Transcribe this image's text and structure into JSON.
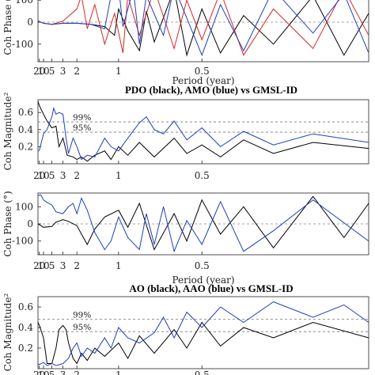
{
  "x_ticks": [
    "20",
    "10",
    "5",
    "3",
    "2",
    "1",
    "0.5"
  ],
  "chart_data": [
    {
      "type": "line",
      "panel": "phase-1",
      "title": "",
      "xlabel": "Period (year)",
      "ylabel": "Coh Phase (°)",
      "xscale": "reciprocal",
      "xlim": [
        30,
        0.25
      ],
      "ylim": [
        -180,
        180
      ],
      "y_ticks": [
        "-100",
        "0",
        "100"
      ],
      "zero_line": true,
      "series": [
        {
          "color": "#000000",
          "points": [
            [
              30,
              5
            ],
            [
              20,
              3
            ],
            [
              10,
              -5
            ],
            [
              5,
              -10
            ],
            [
              3,
              -5
            ],
            [
              2,
              -5
            ],
            [
              1.5,
              -10
            ],
            [
              1.2,
              -20
            ],
            [
              1.05,
              -60
            ],
            [
              1,
              60
            ],
            [
              0.9,
              -40
            ],
            [
              0.8,
              -130
            ],
            [
              0.75,
              50
            ],
            [
              0.7,
              -90
            ],
            [
              0.65,
              20
            ],
            [
              0.6,
              150
            ],
            [
              0.55,
              -150
            ],
            [
              0.5,
              60
            ],
            [
              0.45,
              -140
            ],
            [
              0.4,
              30
            ],
            [
              0.35,
              -100
            ],
            [
              0.3,
              120
            ],
            [
              0.27,
              -150
            ],
            [
              0.25,
              40
            ]
          ]
        },
        {
          "color": "#d62728",
          "points": [
            [
              30,
              5
            ],
            [
              20,
              3
            ],
            [
              10,
              -5
            ],
            [
              5,
              -10
            ],
            [
              3,
              5
            ],
            [
              2,
              60
            ],
            [
              1.8,
              120
            ],
            [
              1.6,
              -30
            ],
            [
              1.4,
              80
            ],
            [
              1.2,
              -100
            ],
            [
              1.05,
              40
            ],
            [
              0.95,
              -140
            ],
            [
              0.9,
              120
            ],
            [
              0.8,
              -60
            ],
            [
              0.7,
              150
            ],
            [
              0.6,
              -120
            ],
            [
              0.55,
              100
            ],
            [
              0.5,
              -80
            ],
            [
              0.45,
              140
            ],
            [
              0.4,
              -150
            ],
            [
              0.35,
              60
            ],
            [
              0.3,
              -120
            ],
            [
              0.27,
              150
            ],
            [
              0.25,
              -60
            ]
          ]
        },
        {
          "color": "#1f3fbf",
          "points": [
            [
              30,
              5
            ],
            [
              20,
              3
            ],
            [
              10,
              -5
            ],
            [
              5,
              -10
            ],
            [
              3,
              -5
            ],
            [
              2,
              -5
            ],
            [
              1.5,
              -10
            ],
            [
              1.2,
              -30
            ],
            [
              1.1,
              120
            ],
            [
              1,
              160
            ],
            [
              0.95,
              -20
            ],
            [
              0.85,
              150
            ],
            [
              0.8,
              -100
            ],
            [
              0.75,
              120
            ],
            [
              0.65,
              -60
            ],
            [
              0.6,
              160
            ],
            [
              0.5,
              -150
            ],
            [
              0.45,
              80
            ],
            [
              0.4,
              -130
            ],
            [
              0.35,
              150
            ],
            [
              0.3,
              -50
            ],
            [
              0.27,
              130
            ],
            [
              0.25,
              -140
            ]
          ]
        }
      ]
    },
    {
      "type": "line",
      "panel": "magnitude-1",
      "title": "PDO (black), AMO (blue) vs GMSL-ID",
      "xlabel": "",
      "ylabel": "Coh Magnitude²",
      "xscale": "reciprocal",
      "xlim": [
        30,
        0.25
      ],
      "ylim": [
        0,
        0.75
      ],
      "y_ticks": [
        "0.2",
        "0.4",
        "0.6"
      ],
      "significance": [
        {
          "label": "99%",
          "value": 0.49
        },
        {
          "label": "95%",
          "value": 0.37
        }
      ],
      "series": [
        {
          "name": "PDO",
          "color": "#000000",
          "points": [
            [
              30,
              0.73
            ],
            [
              20,
              0.68
            ],
            [
              10,
              0.58
            ],
            [
              7,
              0.5
            ],
            [
              5,
              0.42
            ],
            [
              4,
              0.44
            ],
            [
              3.5,
              0.2
            ],
            [
              3,
              0.3
            ],
            [
              2.6,
              0.1
            ],
            [
              2.2,
              0.08
            ],
            [
              2,
              0.05
            ],
            [
              1.8,
              0.08
            ],
            [
              1.6,
              0.03
            ],
            [
              1.4,
              0.1
            ],
            [
              1.2,
              0.15
            ],
            [
              1.1,
              0.05
            ],
            [
              1,
              0.2
            ],
            [
              0.9,
              0.1
            ],
            [
              0.8,
              0.25
            ],
            [
              0.7,
              0.08
            ],
            [
              0.6,
              0.3
            ],
            [
              0.55,
              0.12
            ],
            [
              0.5,
              0.22
            ],
            [
              0.45,
              0.08
            ],
            [
              0.4,
              0.28
            ],
            [
              0.35,
              0.12
            ],
            [
              0.3,
              0.25
            ],
            [
              0.25,
              0.18
            ]
          ]
        },
        {
          "name": "AMO",
          "color": "#1f3fbf",
          "points": [
            [
              30,
              0.15
            ],
            [
              20,
              0.16
            ],
            [
              10,
              0.35
            ],
            [
              7,
              0.4
            ],
            [
              5,
              0.55
            ],
            [
              4.5,
              0.65
            ],
            [
              4,
              0.58
            ],
            [
              3.5,
              0.6
            ],
            [
              3,
              0.58
            ],
            [
              2.7,
              0.3
            ],
            [
              2.5,
              0.12
            ],
            [
              2.2,
              0.3
            ],
            [
              2,
              0.2
            ],
            [
              1.8,
              0.05
            ],
            [
              1.6,
              0.1
            ],
            [
              1.4,
              0.08
            ],
            [
              1.2,
              0.3
            ],
            [
              1.1,
              0.2
            ],
            [
              1,
              0.15
            ],
            [
              0.9,
              0.3
            ],
            [
              0.8,
              0.48
            ],
            [
              0.75,
              0.55
            ],
            [
              0.7,
              0.4
            ],
            [
              0.65,
              0.35
            ],
            [
              0.6,
              0.5
            ],
            [
              0.55,
              0.28
            ],
            [
              0.5,
              0.42
            ],
            [
              0.45,
              0.2
            ],
            [
              0.4,
              0.38
            ],
            [
              0.35,
              0.22
            ],
            [
              0.3,
              0.35
            ],
            [
              0.25,
              0.25
            ]
          ]
        }
      ]
    },
    {
      "type": "line",
      "panel": "phase-2",
      "title": "",
      "xlabel": "Period (year)",
      "ylabel": "Coh Phase (°)",
      "xscale": "reciprocal",
      "xlim": [
        30,
        0.25
      ],
      "ylim": [
        -180,
        180
      ],
      "y_ticks": [
        "-100",
        "0",
        "100"
      ],
      "zero_line": true,
      "series": [
        {
          "color": "#000000",
          "points": [
            [
              30,
              0
            ],
            [
              20,
              -5
            ],
            [
              10,
              -20
            ],
            [
              5,
              -15
            ],
            [
              4,
              10
            ],
            [
              3,
              25
            ],
            [
              2.5,
              15
            ],
            [
              2,
              -10
            ],
            [
              1.8,
              -60
            ],
            [
              1.6,
              -120
            ],
            [
              1.4,
              -30
            ],
            [
              1.2,
              40
            ],
            [
              1,
              80
            ],
            [
              0.9,
              -20
            ],
            [
              0.8,
              120
            ],
            [
              0.7,
              -150
            ],
            [
              0.6,
              60
            ],
            [
              0.55,
              -100
            ],
            [
              0.5,
              140
            ],
            [
              0.45,
              -60
            ],
            [
              0.4,
              100
            ],
            [
              0.35,
              -140
            ],
            [
              0.3,
              160
            ],
            [
              0.27,
              -80
            ],
            [
              0.25,
              120
            ]
          ]
        },
        {
          "color": "#1f3fbf",
          "points": [
            [
              30,
              165
            ],
            [
              20,
              168
            ],
            [
              15,
              170
            ],
            [
              10,
              140
            ],
            [
              7,
              125
            ],
            [
              5,
              110
            ],
            [
              4,
              70
            ],
            [
              3,
              60
            ],
            [
              2.5,
              100
            ],
            [
              2.2,
              120
            ],
            [
              2,
              60
            ],
            [
              1.8,
              150
            ],
            [
              1.6,
              80
            ],
            [
              1.4,
              -50
            ],
            [
              1.2,
              -150
            ],
            [
              1.1,
              -100
            ],
            [
              1,
              40
            ],
            [
              0.9,
              -80
            ],
            [
              0.8,
              -150
            ],
            [
              0.75,
              60
            ],
            [
              0.7,
              -120
            ],
            [
              0.65,
              100
            ],
            [
              0.6,
              -160
            ],
            [
              0.55,
              20
            ],
            [
              0.5,
              -120
            ],
            [
              0.45,
              130
            ],
            [
              0.4,
              -160
            ],
            [
              0.35,
              -40
            ],
            [
              0.3,
              140
            ],
            [
              0.25,
              -100
            ]
          ]
        }
      ]
    },
    {
      "type": "line",
      "panel": "magnitude-2",
      "title": "AO (black), AAO (blue) vs GMSL-ID",
      "xlabel": "Period (year)",
      "ylabel": "Coh Magnitude²",
      "xscale": "reciprocal",
      "xlim": [
        30,
        0.25
      ],
      "ylim": [
        0,
        0.7
      ],
      "y_ticks": [
        "0.2",
        "0.4",
        "0.6"
      ],
      "significance": [
        {
          "label": "99%",
          "value": 0.48
        },
        {
          "label": "95%",
          "value": 0.36
        }
      ],
      "series": [
        {
          "name": "AO",
          "color": "#000000",
          "points": [
            [
              30,
              0.45
            ],
            [
              20,
              0.42
            ],
            [
              10,
              0.3
            ],
            [
              7,
              0.05
            ],
            [
              5,
              0.05
            ],
            [
              4,
              0.2
            ],
            [
              3.5,
              0.38
            ],
            [
              3,
              0.42
            ],
            [
              2.7,
              0.38
            ],
            [
              2.5,
              0.25
            ],
            [
              2.2,
              0.1
            ],
            [
              2,
              0.05
            ],
            [
              1.8,
              0.15
            ],
            [
              1.6,
              0.08
            ],
            [
              1.4,
              0.2
            ],
            [
              1.2,
              0.12
            ],
            [
              1,
              0.25
            ],
            [
              0.9,
              0.1
            ],
            [
              0.8,
              0.32
            ],
            [
              0.7,
              0.15
            ],
            [
              0.6,
              0.38
            ],
            [
              0.55,
              0.2
            ],
            [
              0.5,
              0.45
            ],
            [
              0.45,
              0.22
            ],
            [
              0.4,
              0.4
            ],
            [
              0.35,
              0.3
            ],
            [
              0.3,
              0.45
            ],
            [
              0.25,
              0.3
            ]
          ]
        },
        {
          "name": "AAO",
          "color": "#1f3fbf",
          "points": [
            [
              30,
              0.05
            ],
            [
              20,
              0.04
            ],
            [
              10,
              0.06
            ],
            [
              7,
              0.03
            ],
            [
              5,
              0.05
            ],
            [
              4,
              0.03
            ],
            [
              3,
              0.05
            ],
            [
              2.5,
              0.1
            ],
            [
              2.2,
              0.2
            ],
            [
              2,
              0.25
            ],
            [
              1.8,
              0.12
            ],
            [
              1.6,
              0.2
            ],
            [
              1.4,
              0.15
            ],
            [
              1.2,
              0.3
            ],
            [
              1.1,
              0.2
            ],
            [
              1,
              0.4
            ],
            [
              0.9,
              0.3
            ],
            [
              0.8,
              0.25
            ],
            [
              0.7,
              0.35
            ],
            [
              0.65,
              0.5
            ],
            [
              0.6,
              0.3
            ],
            [
              0.55,
              0.55
            ],
            [
              0.5,
              0.4
            ],
            [
              0.45,
              0.6
            ],
            [
              0.4,
              0.45
            ],
            [
              0.35,
              0.65
            ],
            [
              0.3,
              0.5
            ],
            [
              0.27,
              0.62
            ],
            [
              0.25,
              0.45
            ]
          ]
        }
      ]
    }
  ]
}
